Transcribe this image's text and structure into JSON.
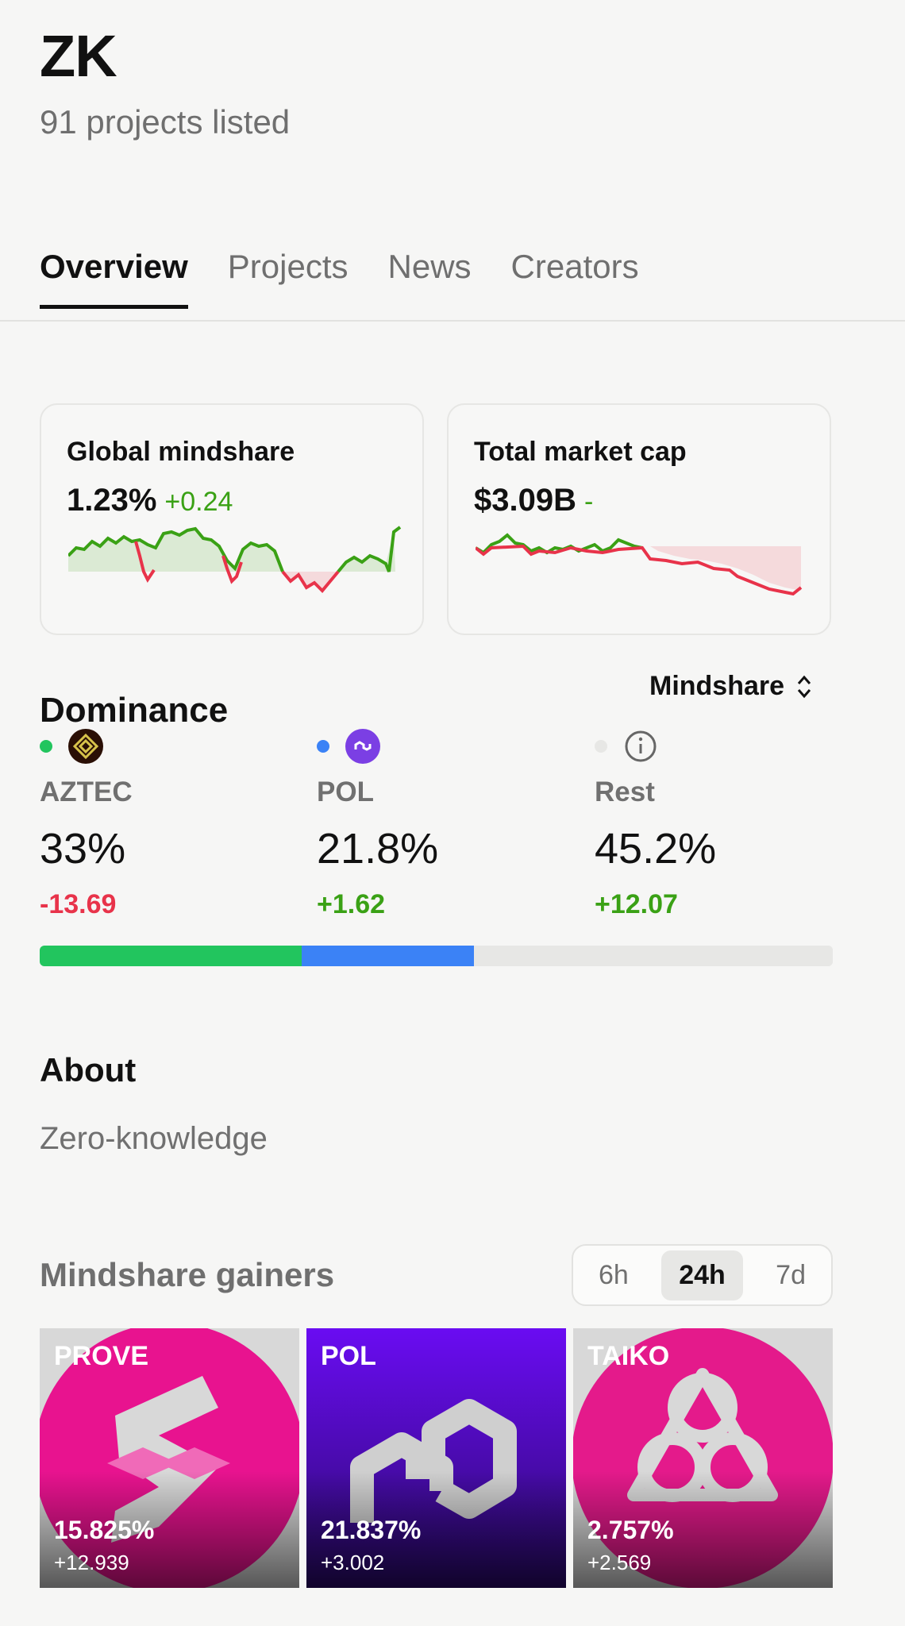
{
  "header": {
    "title": "ZK",
    "subtitle": "91 projects listed"
  },
  "tabs": [
    {
      "label": "Overview",
      "active": true
    },
    {
      "label": "Projects",
      "active": false
    },
    {
      "label": "News",
      "active": false
    },
    {
      "label": "Creators",
      "active": false
    }
  ],
  "cards": {
    "global_mindshare": {
      "label": "Global mindshare",
      "value": "1.23%",
      "change": "+0.24"
    },
    "total_market_cap": {
      "label": "Total market cap",
      "value": "$3.09B",
      "change": "-"
    }
  },
  "colors": {
    "up": "#3aa115",
    "down": "#e8334a",
    "aztec": "#22c55e",
    "pol": "#3b82f6",
    "rest": "#e7e7e5"
  },
  "dominance": {
    "title": "Dominance",
    "metric_selector": "Mindshare",
    "items": [
      {
        "name": "AZTEC",
        "pct": "33%",
        "change": "-13.69",
        "share": 33,
        "icon": "aztec-logo-icon"
      },
      {
        "name": "POL",
        "pct": "21.8%",
        "change": "+1.62",
        "share": 21.8,
        "icon": "polygon-logo-icon"
      },
      {
        "name": "Rest",
        "pct": "45.2%",
        "change": "+12.07",
        "share": 45.2,
        "icon": "info-icon"
      }
    ]
  },
  "about": {
    "title": "About",
    "text": "Zero-knowledge"
  },
  "gainers": {
    "title": "Mindshare gainers",
    "ranges": [
      {
        "label": "6h",
        "active": false
      },
      {
        "label": "24h",
        "active": true
      },
      {
        "label": "7d",
        "active": false
      }
    ],
    "tiles": [
      {
        "name": "PROVE",
        "pct": "15.825%",
        "change": "+12.939"
      },
      {
        "name": "POL",
        "pct": "21.837%",
        "change": "+3.002"
      },
      {
        "name": "TAIKO",
        "pct": "2.757%",
        "change": "+2.569"
      }
    ]
  }
}
